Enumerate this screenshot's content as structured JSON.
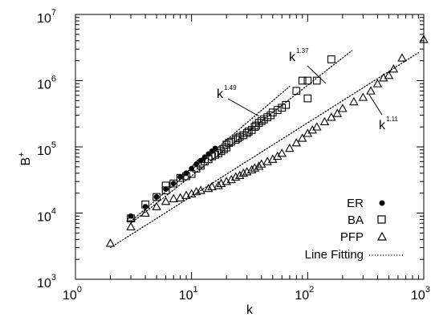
{
  "chart_data": {
    "type": "scatter",
    "xlabel": "k",
    "ylabel_main": "B",
    "ylabel_sup": "+",
    "x_scale": "log",
    "y_scale": "log",
    "xlim": [
      1,
      1000
    ],
    "ylim": [
      1000,
      10000000
    ],
    "grid": false,
    "legend_position": "bottom-right",
    "x_ticks": [
      {
        "value": 1,
        "base": "10",
        "exp": "0"
      },
      {
        "value": 10,
        "base": "10",
        "exp": "1"
      },
      {
        "value": 100,
        "base": "10",
        "exp": "2"
      },
      {
        "value": 1000,
        "base": "10",
        "exp": "3"
      }
    ],
    "y_ticks": [
      {
        "value": 1000,
        "base": "10",
        "exp": "3"
      },
      {
        "value": 10000,
        "base": "10",
        "exp": "4"
      },
      {
        "value": 100000,
        "base": "10",
        "exp": "5"
      },
      {
        "value": 1000000,
        "base": "10",
        "exp": "6"
      },
      {
        "value": 10000000,
        "base": "10",
        "exp": "7"
      }
    ],
    "series": [
      {
        "name": "ER",
        "marker": "filled-circle",
        "points": [
          [
            3,
            9000
          ],
          [
            4,
            12500
          ],
          [
            5,
            17500
          ],
          [
            6,
            23000
          ],
          [
            7,
            28000
          ],
          [
            8,
            35000
          ],
          [
            9,
            40000
          ],
          [
            10,
            47000
          ],
          [
            11,
            55000
          ],
          [
            12,
            62000
          ],
          [
            13,
            70000
          ],
          [
            14,
            78000
          ],
          [
            15,
            86000
          ],
          [
            16,
            95000
          ]
        ]
      },
      {
        "name": "BA",
        "marker": "open-square",
        "points": [
          [
            3,
            8300
          ],
          [
            4,
            13500
          ],
          [
            5,
            17500
          ],
          [
            6,
            22000
          ],
          [
            6,
            26000
          ],
          [
            7,
            28000
          ],
          [
            8,
            34000
          ],
          [
            9,
            36000
          ],
          [
            10,
            39000
          ],
          [
            11,
            47000
          ],
          [
            12,
            52000
          ],
          [
            12,
            56000
          ],
          [
            13,
            60000
          ],
          [
            14,
            65000
          ],
          [
            15,
            72000
          ],
          [
            16,
            76000
          ],
          [
            17,
            80000
          ],
          [
            18,
            86000
          ],
          [
            19,
            92000
          ],
          [
            20,
            98000
          ],
          [
            20,
            108000
          ],
          [
            21,
            115000
          ],
          [
            22,
            120000
          ],
          [
            24,
            128000
          ],
          [
            25,
            135000
          ],
          [
            26,
            142000
          ],
          [
            28,
            150000
          ],
          [
            30,
            162000
          ],
          [
            31,
            170000
          ],
          [
            33,
            180000
          ],
          [
            35,
            200000
          ],
          [
            36,
            210000
          ],
          [
            38,
            230000
          ],
          [
            40,
            245000
          ],
          [
            42,
            260000
          ],
          [
            45,
            280000
          ],
          [
            48,
            300000
          ],
          [
            50,
            330000
          ],
          [
            55,
            360000
          ],
          [
            60,
            390000
          ],
          [
            65,
            430000
          ],
          [
            80,
            700000
          ],
          [
            90,
            1000000
          ],
          [
            100,
            1000000
          ],
          [
            100,
            540000
          ],
          [
            120,
            1000000
          ],
          [
            160,
            2100000
          ]
        ]
      },
      {
        "name": "PFP",
        "marker": "open-triangle",
        "points": [
          [
            2,
            3500
          ],
          [
            3,
            6200
          ],
          [
            3,
            8500
          ],
          [
            4,
            10000
          ],
          [
            5,
            12500
          ],
          [
            6,
            15000
          ],
          [
            7,
            16500
          ],
          [
            8,
            17000
          ],
          [
            9,
            18500
          ],
          [
            10,
            19500
          ],
          [
            11,
            21000
          ],
          [
            12,
            22000
          ],
          [
            14,
            23500
          ],
          [
            15,
            25000
          ],
          [
            17,
            26000
          ],
          [
            18,
            28000
          ],
          [
            20,
            30000
          ],
          [
            22,
            32000
          ],
          [
            24,
            35000
          ],
          [
            26,
            37000
          ],
          [
            28,
            40000
          ],
          [
            30,
            42000
          ],
          [
            33,
            45000
          ],
          [
            35,
            48000
          ],
          [
            38,
            51000
          ],
          [
            40,
            55000
          ],
          [
            45,
            60000
          ],
          [
            50,
            65000
          ],
          [
            55,
            72000
          ],
          [
            60,
            80000
          ],
          [
            70,
            95000
          ],
          [
            80,
            115000
          ],
          [
            90,
            135000
          ],
          [
            100,
            160000
          ],
          [
            110,
            180000
          ],
          [
            120,
            200000
          ],
          [
            140,
            240000
          ],
          [
            160,
            280000
          ],
          [
            180,
            320000
          ],
          [
            200,
            380000
          ],
          [
            250,
            480000
          ],
          [
            300,
            560000
          ],
          [
            350,
            700000
          ],
          [
            400,
            900000
          ],
          [
            450,
            1100000
          ],
          [
            500,
            1200000
          ],
          [
            550,
            1500000
          ],
          [
            650,
            2200000
          ],
          [
            1000,
            4200000
          ]
        ]
      }
    ],
    "fit_lines": [
      {
        "exponent_text": "1.49",
        "x_range": [
          3,
          70
        ],
        "y_at_start": 7500
      },
      {
        "exponent_text": "1.37",
        "x_range": [
          3,
          240
        ],
        "y_at_start": 7000
      },
      {
        "exponent_text": "1.11",
        "x_range": [
          2,
          900
        ],
        "y_at_start": 3000
      }
    ],
    "annotations": [
      {
        "base": "k",
        "sup": "1.37"
      },
      {
        "base": "k",
        "sup": "1.49"
      },
      {
        "base": "k",
        "sup": "1.11"
      }
    ],
    "legend": [
      {
        "label": "ER",
        "marker": "filled-circle"
      },
      {
        "label": "BA",
        "marker": "open-square"
      },
      {
        "label": "PFP",
        "marker": "open-triangle"
      },
      {
        "label": "Line Fitting",
        "marker": "dotted-line"
      }
    ]
  }
}
